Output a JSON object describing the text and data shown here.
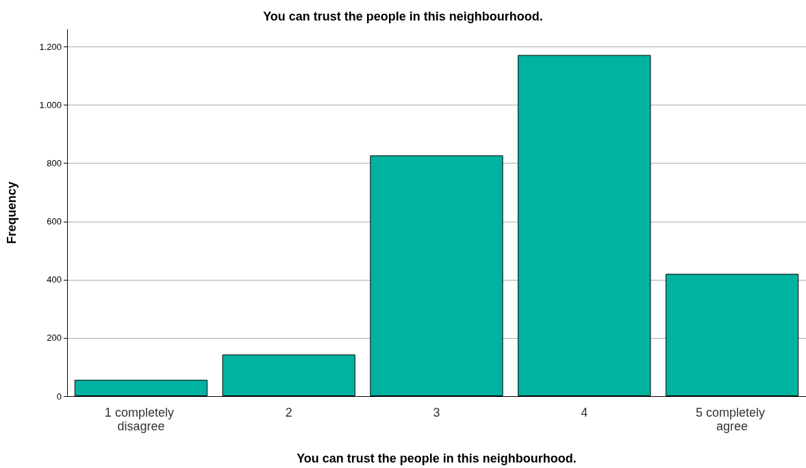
{
  "chart_data": {
    "type": "bar",
    "title": "You can trust the people in this neighbourhood.",
    "xlabel": "You can trust the people in this neighbourhood.",
    "ylabel": "Frequency",
    "categories": [
      "1 completely disagree",
      "2",
      "3",
      "4",
      "5 completely agree"
    ],
    "values": [
      56,
      143,
      827,
      1172,
      420
    ],
    "color": "#00b2a0",
    "ylim": [
      0,
      1260
    ],
    "yticks": [
      0,
      200,
      400,
      600,
      800,
      {
        "value": 1000,
        "label": "1.000"
      },
      {
        "value": 1200,
        "label": "1.200"
      }
    ],
    "grid": "y"
  }
}
